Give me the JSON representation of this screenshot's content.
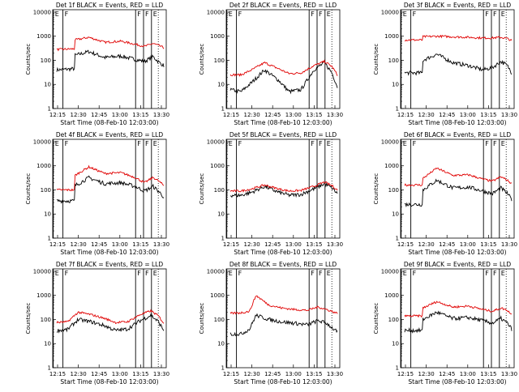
{
  "colors": {
    "events": "#000000",
    "lld": "#e00000",
    "axis": "#000000"
  },
  "xaxis_label": "Start Time (08-Feb-10 12:03:00)",
  "ylabel": "Counts/sec",
  "yticks": [
    "1",
    "10",
    "100",
    "1000",
    "10000"
  ],
  "chart_data": [
    {
      "type": "line",
      "title": "Det 1f BLACK = Events, RED = LLD",
      "xticks": [
        "12:15",
        "12:30",
        "12:45",
        "13:00",
        "13:15",
        "13:30"
      ],
      "flags": [
        "E",
        "F",
        "F",
        "F",
        "E"
      ],
      "series": [
        {
          "name": "Events",
          "color": "#000000",
          "x": [
            0,
            0.17,
            0.17,
            0.3,
            0.45,
            0.6,
            0.73,
            0.82,
            0.9,
            0.96,
            1.0
          ],
          "y": [
            40,
            45,
            160,
            230,
            130,
            150,
            110,
            90,
            140,
            80,
            60
          ]
        },
        {
          "name": "LLD",
          "color": "#e00000",
          "x": [
            0,
            0.17,
            0.17,
            0.3,
            0.45,
            0.6,
            0.73,
            0.82,
            0.9,
            0.96,
            1.0
          ],
          "y": [
            280,
            300,
            700,
            900,
            560,
            620,
            470,
            380,
            500,
            400,
            330
          ]
        }
      ]
    },
    {
      "type": "line",
      "title": "Det 2f BLACK = Events, RED = LLD",
      "xticks": [
        "12:15",
        "12:30",
        "12:45",
        "13:00",
        "13:15",
        "13:30"
      ],
      "flags": [
        "E",
        "F",
        "F",
        "F",
        "E"
      ],
      "series": [
        {
          "name": "Events",
          "color": "#000000",
          "x": [
            0,
            0.1,
            0.2,
            0.32,
            0.45,
            0.55,
            0.66,
            0.78,
            0.88,
            0.95,
            1.0
          ],
          "y": [
            6,
            5,
            12,
            40,
            15,
            5,
            6,
            40,
            80,
            30,
            8
          ]
        },
        {
          "name": "LLD",
          "color": "#e00000",
          "x": [
            0,
            0.1,
            0.2,
            0.32,
            0.45,
            0.55,
            0.66,
            0.78,
            0.88,
            0.95,
            1.0
          ],
          "y": [
            25,
            25,
            40,
            80,
            45,
            28,
            30,
            60,
            90,
            55,
            25
          ]
        }
      ]
    },
    {
      "type": "line",
      "title": "Det 3f BLACK = Events, RED = LLD",
      "xticks": [
        "12:15",
        "12:30",
        "12:45",
        "13:00",
        "13:15",
        "13:30"
      ],
      "flags": [
        "E",
        "F",
        "F",
        "F",
        "E"
      ],
      "series": [
        {
          "name": "Events",
          "color": "#000000",
          "x": [
            0,
            0.17,
            0.17,
            0.3,
            0.45,
            0.6,
            0.73,
            0.82,
            0.9,
            0.96,
            1.0
          ],
          "y": [
            30,
            30,
            100,
            180,
            80,
            60,
            40,
            50,
            90,
            60,
            30
          ]
        },
        {
          "name": "LLD",
          "color": "#e00000",
          "x": [
            0,
            0.17,
            0.17,
            0.3,
            0.45,
            0.6,
            0.73,
            0.82,
            0.9,
            0.96,
            1.0
          ],
          "y": [
            700,
            700,
            950,
            1000,
            950,
            900,
            850,
            850,
            900,
            800,
            650
          ]
        }
      ]
    },
    {
      "type": "line",
      "title": "Det 4f BLACK = Events, RED = LLD",
      "xticks": [
        "12:15",
        "12:30",
        "12:45",
        "13:00",
        "13:15",
        "13:30"
      ],
      "flags": [
        "E",
        "F",
        "F",
        "F",
        "E"
      ],
      "series": [
        {
          "name": "Events",
          "color": "#000000",
          "x": [
            0,
            0.17,
            0.17,
            0.3,
            0.45,
            0.6,
            0.73,
            0.82,
            0.9,
            0.96,
            1.0
          ],
          "y": [
            35,
            35,
            150,
            320,
            180,
            200,
            140,
            90,
            140,
            80,
            50
          ]
        },
        {
          "name": "LLD",
          "color": "#e00000",
          "x": [
            0,
            0.17,
            0.17,
            0.3,
            0.45,
            0.6,
            0.73,
            0.82,
            0.9,
            0.96,
            1.0
          ],
          "y": [
            100,
            100,
            400,
            900,
            480,
            520,
            330,
            200,
            330,
            220,
            150
          ]
        }
      ]
    },
    {
      "type": "line",
      "title": "Det 5f BLACK = Events, RED = LLD",
      "xticks": [
        "12:15",
        "12:30",
        "12:45",
        "13:00",
        "13:15",
        "13:30"
      ],
      "flags": [
        "E",
        "F",
        "F",
        "F",
        "E"
      ],
      "series": [
        {
          "name": "Events",
          "color": "#000000",
          "x": [
            0,
            0.1,
            0.2,
            0.32,
            0.45,
            0.55,
            0.66,
            0.78,
            0.88,
            0.95,
            1.0
          ],
          "y": [
            60,
            60,
            80,
            140,
            80,
            60,
            65,
            110,
            180,
            120,
            70
          ]
        },
        {
          "name": "LLD",
          "color": "#e00000",
          "x": [
            0,
            0.1,
            0.2,
            0.32,
            0.45,
            0.55,
            0.66,
            0.78,
            0.88,
            0.95,
            1.0
          ],
          "y": [
            90,
            90,
            110,
            160,
            110,
            90,
            95,
            140,
            210,
            150,
            100
          ]
        }
      ]
    },
    {
      "type": "line",
      "title": "Det 6f BLACK = Events, RED = LLD",
      "xticks": [
        "12:15",
        "12:30",
        "12:45",
        "13:00",
        "13:15",
        "13:30"
      ],
      "flags": [
        "E",
        "F",
        "F",
        "F",
        "E"
      ],
      "series": [
        {
          "name": "Events",
          "color": "#000000",
          "x": [
            0,
            0.17,
            0.17,
            0.3,
            0.45,
            0.6,
            0.73,
            0.82,
            0.9,
            0.96,
            1.0
          ],
          "y": [
            25,
            25,
            100,
            250,
            120,
            130,
            90,
            70,
            120,
            70,
            40
          ]
        },
        {
          "name": "LLD",
          "color": "#e00000",
          "x": [
            0,
            0.17,
            0.17,
            0.3,
            0.45,
            0.6,
            0.73,
            0.82,
            0.9,
            0.96,
            1.0
          ],
          "y": [
            160,
            160,
            300,
            800,
            400,
            420,
            280,
            230,
            350,
            250,
            180
          ]
        }
      ]
    },
    {
      "type": "line",
      "title": "Det 7f BLACK = Events, RED = LLD",
      "xticks": [
        "12:15",
        "12:30",
        "12:45",
        "13:00",
        "13:15",
        "13:30"
      ],
      "flags": [
        "E",
        "F",
        "F",
        "F",
        "E"
      ],
      "series": [
        {
          "name": "Events",
          "color": "#000000",
          "x": [
            0,
            0.1,
            0.2,
            0.32,
            0.45,
            0.55,
            0.66,
            0.78,
            0.88,
            0.95,
            1.0
          ],
          "y": [
            35,
            38,
            100,
            80,
            55,
            35,
            40,
            90,
            150,
            80,
            35
          ]
        },
        {
          "name": "LLD",
          "color": "#e00000",
          "x": [
            0,
            0.1,
            0.2,
            0.32,
            0.45,
            0.55,
            0.66,
            0.78,
            0.88,
            0.95,
            1.0
          ],
          "y": [
            75,
            80,
            200,
            160,
            110,
            75,
            80,
            160,
            230,
            140,
            70
          ]
        }
      ]
    },
    {
      "type": "line",
      "title": "Det 8f BLACK = Events, RED = LLD",
      "xticks": [
        "12:15",
        "12:30",
        "12:45",
        "13:00",
        "13:15",
        "13:30"
      ],
      "flags": [
        "E",
        "F",
        "F",
        "F",
        "E"
      ],
      "series": [
        {
          "name": "Events",
          "color": "#000000",
          "x": [
            0,
            0.1,
            0.18,
            0.24,
            0.36,
            0.48,
            0.6,
            0.72,
            0.82,
            0.9,
            1.0
          ],
          "y": [
            25,
            25,
            40,
            150,
            100,
            80,
            70,
            60,
            90,
            70,
            30
          ]
        },
        {
          "name": "LLD",
          "color": "#e00000",
          "x": [
            0,
            0.1,
            0.18,
            0.24,
            0.36,
            0.48,
            0.6,
            0.72,
            0.82,
            0.9,
            1.0
          ],
          "y": [
            180,
            190,
            220,
            1000,
            400,
            300,
            260,
            240,
            330,
            260,
            180
          ]
        }
      ]
    },
    {
      "type": "line",
      "title": "Det 9f BLACK = Events, RED = LLD",
      "xticks": [
        "12:15",
        "12:30",
        "12:45",
        "13:00",
        "13:15",
        "13:30"
      ],
      "flags": [
        "E",
        "F",
        "F",
        "F",
        "E"
      ],
      "series": [
        {
          "name": "Events",
          "color": "#000000",
          "x": [
            0,
            0.17,
            0.17,
            0.3,
            0.45,
            0.6,
            0.73,
            0.82,
            0.9,
            0.96,
            1.0
          ],
          "y": [
            35,
            35,
            100,
            200,
            110,
            120,
            90,
            70,
            110,
            70,
            40
          ]
        },
        {
          "name": "LLD",
          "color": "#e00000",
          "x": [
            0,
            0.17,
            0.17,
            0.3,
            0.45,
            0.6,
            0.73,
            0.82,
            0.9,
            0.96,
            1.0
          ],
          "y": [
            140,
            140,
            300,
            550,
            330,
            360,
            260,
            220,
            300,
            240,
            160
          ]
        }
      ]
    }
  ]
}
